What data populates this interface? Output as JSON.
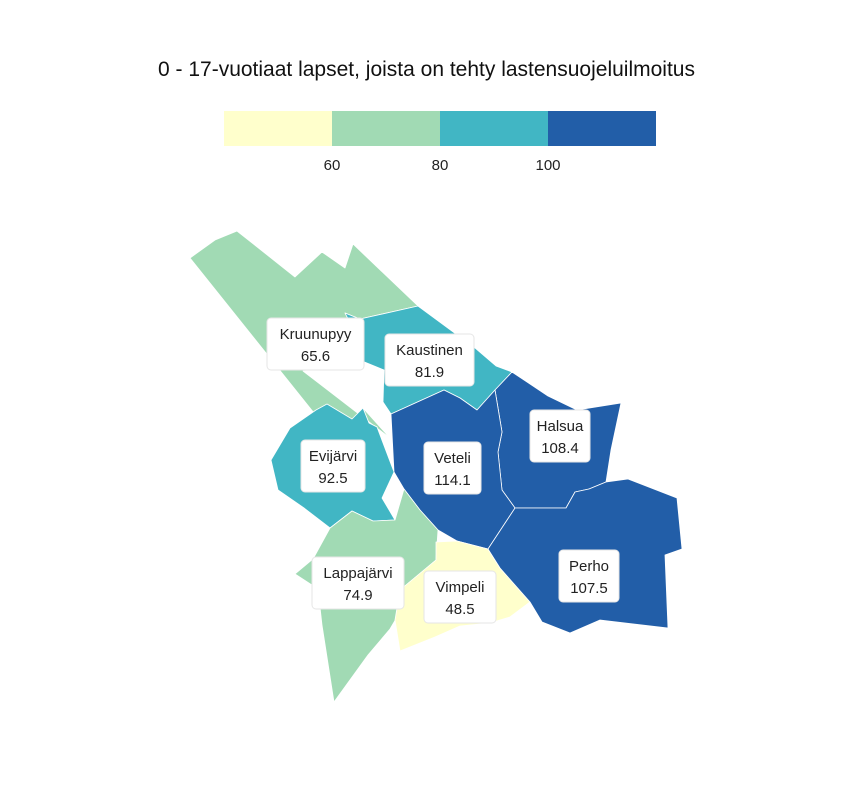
{
  "title": "0 - 17-vuotiaat lapset, joista on tehty lastensuojeluilmoitus",
  "legend": {
    "ticks": [
      "60",
      "80",
      "100"
    ],
    "bins": [
      {
        "color": "#ffffcc"
      },
      {
        "color": "#a1dab4"
      },
      {
        "color": "#41b6c4"
      },
      {
        "color": "#225ea8"
      }
    ]
  },
  "regions": [
    {
      "name": "Kruunupyy",
      "value": "65.6"
    },
    {
      "name": "Kaustinen",
      "value": "81.9"
    },
    {
      "name": "Halsua",
      "value": "108.4"
    },
    {
      "name": "Evijärvi",
      "value": "92.5"
    },
    {
      "name": "Veteli",
      "value": "114.1"
    },
    {
      "name": "Lappajärvi",
      "value": "74.9"
    },
    {
      "name": "Vimpeli",
      "value": "48.5"
    },
    {
      "name": "Perho",
      "value": "107.5"
    }
  ]
}
